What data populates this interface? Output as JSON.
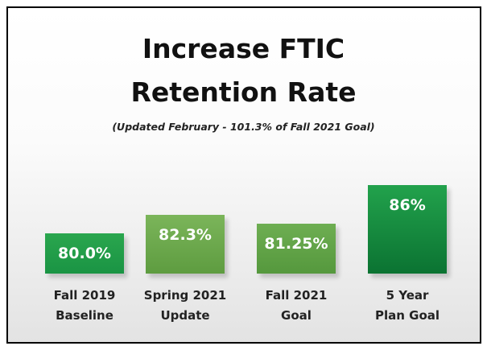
{
  "chart_data": {
    "type": "bar",
    "title": "Increase FTIC\nRetention Rate",
    "subtitle": "(Updated February - 101.3% of Fall 2021 Goal)",
    "categories": [
      "Fall 2019\nBaseline",
      "Spring 2021\nUpdate",
      "Fall 2021\nGoal",
      "5 Year\nPlan Goal"
    ],
    "values": [
      80.0,
      82.3,
      81.25,
      86
    ],
    "value_labels": [
      "80.0%",
      "82.3%",
      "81.25%",
      "86%"
    ],
    "colors": [
      [
        "#2aa64e",
        "#1a9444"
      ],
      [
        "#7bb55a",
        "#5e9c40"
      ],
      [
        "#6eae52",
        "#55983d"
      ],
      [
        "#22a24c",
        "#0b7332"
      ]
    ],
    "ylim": [
      75,
      90
    ]
  }
}
